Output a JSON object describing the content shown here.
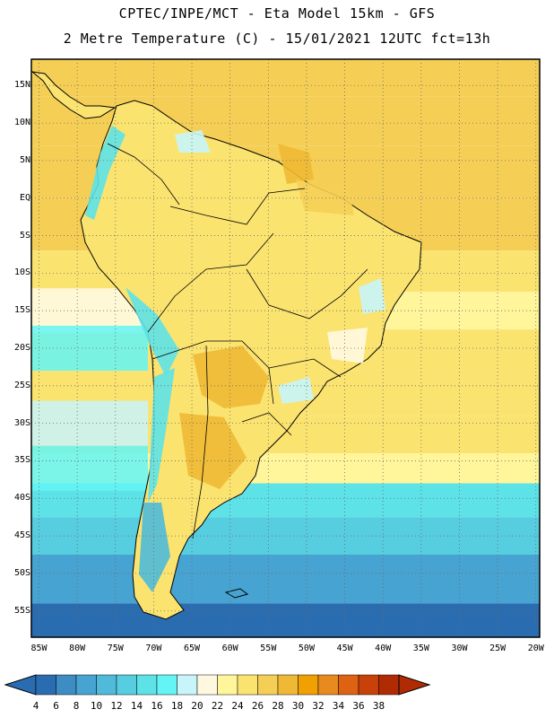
{
  "header": {
    "line1": "CPTEC/INPE/MCT -  Eta Model 15km - GFS",
    "line2": "2 Metre Temperature (C) - 15/01/2021 12UTC fct=13h"
  },
  "map": {
    "lat_labels": [
      "15N",
      "10N",
      "5N",
      "EQ",
      "5S",
      "10S",
      "15S",
      "20S",
      "25S",
      "30S",
      "35S",
      "40S",
      "45S",
      "50S",
      "55S"
    ],
    "lon_labels": [
      "85W",
      "80W",
      "75W",
      "70W",
      "65W",
      "60W",
      "55W",
      "50W",
      "45W",
      "40W",
      "35W",
      "30W",
      "25W",
      "20W"
    ],
    "ocean_bands": [
      {
        "lat": 17,
        "value": 26
      },
      {
        "lat": 10,
        "value": 27
      },
      {
        "lat": 4,
        "value": 27
      },
      {
        "lat": -4,
        "value": 26
      },
      {
        "lat": -10,
        "value": 25
      },
      {
        "lat": -15,
        "value": 23
      },
      {
        "lat": -20,
        "value": 24
      },
      {
        "lat": -26,
        "value": 25
      },
      {
        "lat": -32,
        "value": 24
      },
      {
        "lat": -36,
        "value": 22
      },
      {
        "lat": -40,
        "value": 15
      },
      {
        "lat": -45,
        "value": 12
      },
      {
        "lat": -50,
        "value": 9
      },
      {
        "lat": -58,
        "value": 5
      }
    ],
    "pacific_cold": [
      {
        "lat": -15,
        "value": 21
      },
      {
        "lat": -20,
        "value": 17
      },
      {
        "lat": -30,
        "value": 19
      },
      {
        "lat": -36,
        "value": 16
      }
    ]
  },
  "colorbar": {
    "labels": [
      "4",
      "6",
      "8",
      "10",
      "12",
      "14",
      "16",
      "18",
      "20",
      "22",
      "24",
      "26",
      "28",
      "30",
      "32",
      "34",
      "36",
      "38"
    ],
    "colors": [
      "#2a6cb0",
      "#3d8cc4",
      "#47a3d1",
      "#4fbad9",
      "#57cde0",
      "#5de2e8",
      "#63f5f5",
      "#c8f5fa",
      "#fff8e0",
      "#fff59a",
      "#fbe370",
      "#f5cf55",
      "#f0b935",
      "#f0a000",
      "#e88a1e",
      "#dd6212",
      "#c84108",
      "#b02a04"
    ],
    "low_color": "#2a6cb0",
    "high_color": "#b02a04"
  }
}
